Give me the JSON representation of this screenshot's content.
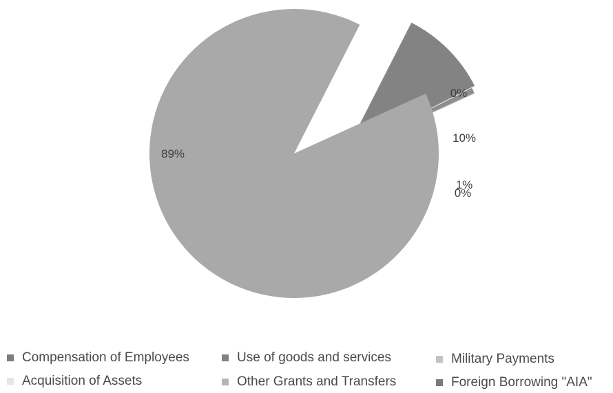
{
  "chart_data": {
    "type": "pie",
    "title": "",
    "exploded_slices": true,
    "legend_position": "bottom",
    "slices": [
      {
        "name": "Compensation of Employees",
        "value": 0.1,
        "label": "0%",
        "color": "#7d7d7d"
      },
      {
        "name": "Use of goods and services",
        "value": 9.9,
        "label": "10%",
        "color": "#838383"
      },
      {
        "name": "Military Payments",
        "value": 0.6,
        "label": "1%",
        "color": "#8e8e8e"
      },
      {
        "name": "Acquisition of Assets",
        "value": 0.1,
        "label": "0%",
        "color": "#b8b8b8"
      },
      {
        "name": "Other Grants and Transfers",
        "value": 89.3,
        "label": "89%",
        "color": "#a9a9a9"
      },
      {
        "name": "Foreign Borrowing \"AIA\"",
        "value": 0.0,
        "label": "",
        "color": "#7a7a7a"
      }
    ]
  },
  "legend": {
    "items": [
      {
        "label": "Compensation of Employees",
        "color": "#7d7d7d"
      },
      {
        "label": "Use of goods and services",
        "color": "#838383"
      },
      {
        "label": "Military Payments",
        "color": "#c4c4c4"
      },
      {
        "label": "Acquisition of Assets",
        "color": "#e6e6e6"
      },
      {
        "label": "Other Grants and Transfers",
        "color": "#b5b5b5"
      },
      {
        "label": "Foreign Borrowing \"AIA\"",
        "color": "#7a7a7a"
      }
    ]
  }
}
